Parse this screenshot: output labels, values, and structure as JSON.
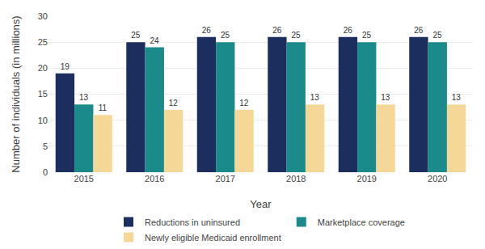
{
  "chart_data": {
    "type": "bar",
    "xlabel": "Year",
    "ylabel": "Number of individuals (in millions)",
    "categories": [
      "2015",
      "2016",
      "2017",
      "2018",
      "2019",
      "2020"
    ],
    "series": [
      {
        "name": "Reductions in uninsured",
        "color": "#1b2e5e",
        "values": [
          19,
          25,
          26,
          26,
          26,
          26
        ]
      },
      {
        "name": "Marketplace coverage",
        "color": "#1a8a8a",
        "values": [
          13,
          24,
          25,
          25,
          25,
          25
        ]
      },
      {
        "name": "Newly eligible Medicaid enrollment",
        "color": "#f5d897",
        "values": [
          11,
          12,
          12,
          13,
          13,
          13
        ]
      }
    ],
    "ylim": [
      0,
      30
    ],
    "yticks": [
      0,
      5,
      10,
      15,
      20,
      25,
      30
    ],
    "grid": true,
    "legend": "bottom",
    "data_labels": true
  }
}
